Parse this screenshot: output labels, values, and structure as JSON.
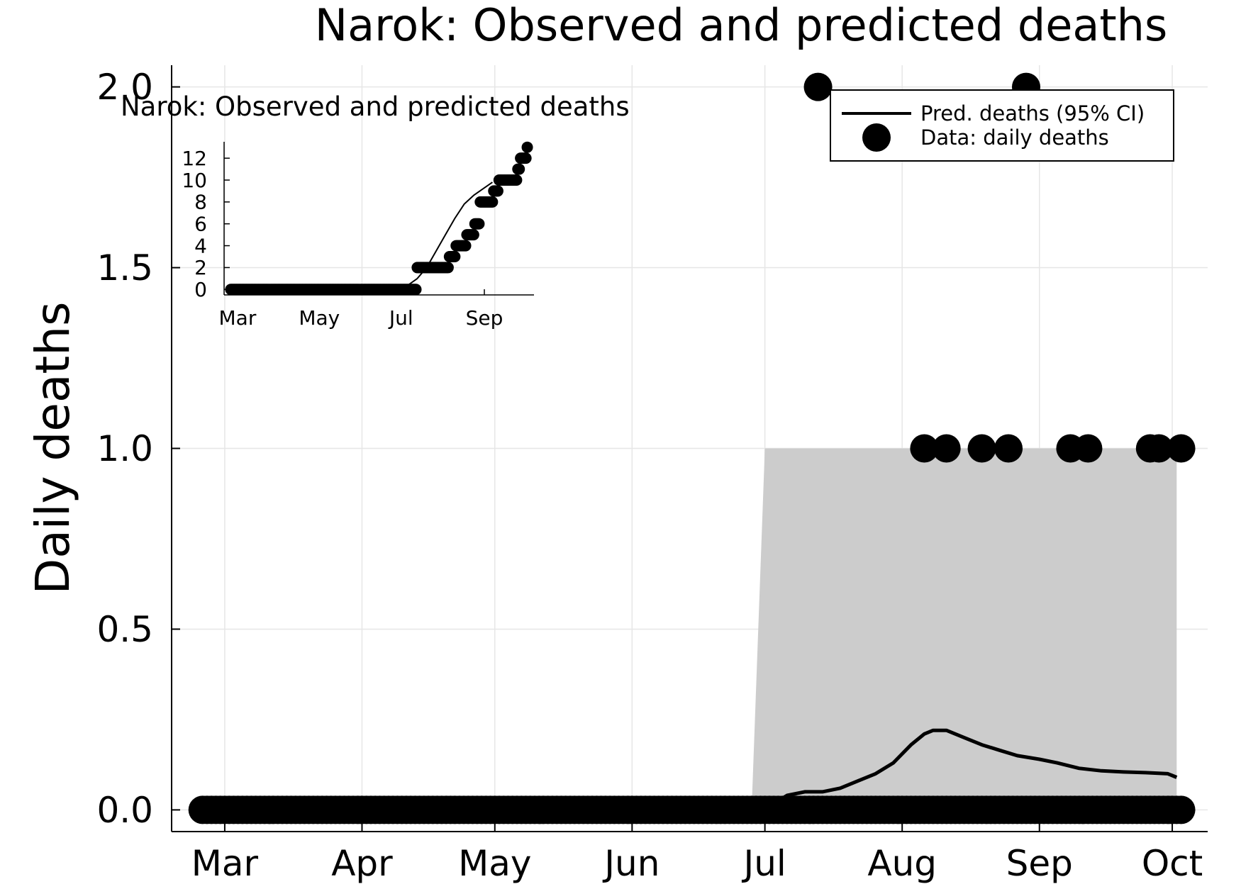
{
  "chart_data": [
    {
      "type": "line",
      "title": "Narok: Observed and predicted deaths",
      "xlabel": "",
      "ylabel": "Daily deaths",
      "xlim": [
        "2020-02-18",
        "2020-10-09"
      ],
      "ylim": [
        -0.06,
        2.06
      ],
      "x_ticks": [
        {
          "date": "2020-03-01",
          "label": "Mar"
        },
        {
          "date": "2020-04-01",
          "label": "Apr"
        },
        {
          "date": "2020-05-01",
          "label": "May"
        },
        {
          "date": "2020-06-01",
          "label": "Jun"
        },
        {
          "date": "2020-07-01",
          "label": "Jul"
        },
        {
          "date": "2020-08-01",
          "label": "Aug"
        },
        {
          "date": "2020-09-01",
          "label": "Sep"
        },
        {
          "date": "2020-10-01",
          "label": "Oct"
        }
      ],
      "y_ticks": [
        {
          "value": 0.0,
          "label": "0.0"
        },
        {
          "value": 0.5,
          "label": "0.5"
        },
        {
          "value": 1.0,
          "label": "1.0"
        },
        {
          "value": 1.5,
          "label": "1.5"
        },
        {
          "value": 2.0,
          "label": "2.0"
        }
      ],
      "grid": true,
      "legend_position": "top-right",
      "series": [
        {
          "name": "Pred. deaths (95% CI)",
          "kind": "line",
          "color": "#000000",
          "x": [
            "2020-02-25",
            "2020-06-28",
            "2020-07-02",
            "2020-07-06",
            "2020-07-10",
            "2020-07-14",
            "2020-07-18",
            "2020-07-22",
            "2020-07-26",
            "2020-07-30",
            "2020-08-03",
            "2020-08-06",
            "2020-08-08",
            "2020-08-11",
            "2020-08-15",
            "2020-08-19",
            "2020-08-23",
            "2020-08-27",
            "2020-09-01",
            "2020-09-05",
            "2020-09-10",
            "2020-09-15",
            "2020-09-20",
            "2020-09-25",
            "2020-09-30",
            "2020-10-02"
          ],
          "y": [
            0,
            0,
            0.01,
            0.04,
            0.05,
            0.05,
            0.06,
            0.08,
            0.1,
            0.13,
            0.18,
            0.21,
            0.22,
            0.22,
            0.2,
            0.18,
            0.165,
            0.15,
            0.14,
            0.13,
            0.115,
            0.108,
            0.105,
            0.103,
            0.1,
            0.09
          ],
          "ci_band": {
            "x": [
              "2020-06-28",
              "2020-07-01",
              "2020-10-02"
            ],
            "lower": [
              0,
              0,
              0
            ],
            "upper": [
              0,
              1,
              1
            ],
            "color": "#cccccc"
          }
        },
        {
          "name": "Data: daily deaths",
          "kind": "scatter",
          "color": "#000000",
          "zero_range": [
            "2020-02-25",
            "2020-10-03"
          ],
          "points": [
            {
              "x": "2020-07-13",
              "y": 2
            },
            {
              "x": "2020-08-06",
              "y": 1
            },
            {
              "x": "2020-08-11",
              "y": 1
            },
            {
              "x": "2020-08-19",
              "y": 1
            },
            {
              "x": "2020-08-25",
              "y": 1
            },
            {
              "x": "2020-08-29",
              "y": 2
            },
            {
              "x": "2020-09-08",
              "y": 1
            },
            {
              "x": "2020-09-12",
              "y": 1
            },
            {
              "x": "2020-09-26",
              "y": 1
            },
            {
              "x": "2020-09-28",
              "y": 1
            },
            {
              "x": "2020-10-03",
              "y": 1
            }
          ]
        }
      ]
    },
    {
      "type": "line",
      "title": "Narok: Observed and predicted deaths",
      "xlabel": "",
      "ylabel": "",
      "xlim": [
        "2020-02-20",
        "2020-10-08"
      ],
      "ylim": [
        -0.5,
        13.5
      ],
      "x_ticks": [
        {
          "date": "2020-03-01",
          "label": "Mar"
        },
        {
          "date": "2020-05-01",
          "label": "May"
        },
        {
          "date": "2020-07-01",
          "label": "Jul"
        },
        {
          "date": "2020-09-01",
          "label": "Sep"
        }
      ],
      "y_ticks": [
        {
          "value": 0,
          "label": "0"
        },
        {
          "value": 2,
          "label": "2"
        },
        {
          "value": 4,
          "label": "4"
        },
        {
          "value": 6,
          "label": "6"
        },
        {
          "value": 8,
          "label": "8"
        },
        {
          "value": 10,
          "label": "10"
        },
        {
          "value": 12,
          "label": "12"
        }
      ],
      "grid": false,
      "series": [
        {
          "name": "",
          "kind": "line",
          "color": "#000000",
          "x": [
            "2020-02-25",
            "2020-06-28",
            "2020-07-05",
            "2020-07-13",
            "2020-07-20",
            "2020-07-27",
            "2020-08-03",
            "2020-08-10",
            "2020-08-17",
            "2020-08-24",
            "2020-08-31",
            "2020-09-07"
          ],
          "y": [
            0,
            0,
            0.3,
            1.0,
            2.0,
            3.5,
            5.0,
            6.5,
            7.8,
            8.6,
            9.2,
            9.8
          ]
        },
        {
          "name": "",
          "kind": "scatter",
          "color": "#000000",
          "steps": [
            {
              "from": "2020-02-25",
              "to": "2020-07-12",
              "y": 0
            },
            {
              "from": "2020-07-13",
              "to": "2020-08-05",
              "y": 2
            },
            {
              "from": "2020-08-06",
              "to": "2020-08-10",
              "y": 3
            },
            {
              "from": "2020-08-11",
              "to": "2020-08-18",
              "y": 4
            },
            {
              "from": "2020-08-19",
              "to": "2020-08-24",
              "y": 5
            },
            {
              "from": "2020-08-25",
              "to": "2020-08-28",
              "y": 6
            },
            {
              "from": "2020-08-29",
              "to": "2020-09-07",
              "y": 8
            },
            {
              "from": "2020-09-08",
              "to": "2020-09-11",
              "y": 9
            },
            {
              "from": "2020-09-12",
              "to": "2020-09-25",
              "y": 10
            },
            {
              "from": "2020-09-26",
              "to": "2020-09-27",
              "y": 11
            },
            {
              "from": "2020-09-28",
              "to": "2020-10-02",
              "y": 12
            },
            {
              "from": "2020-10-03",
              "to": "2020-10-03",
              "y": 13
            }
          ]
        }
      ]
    }
  ]
}
